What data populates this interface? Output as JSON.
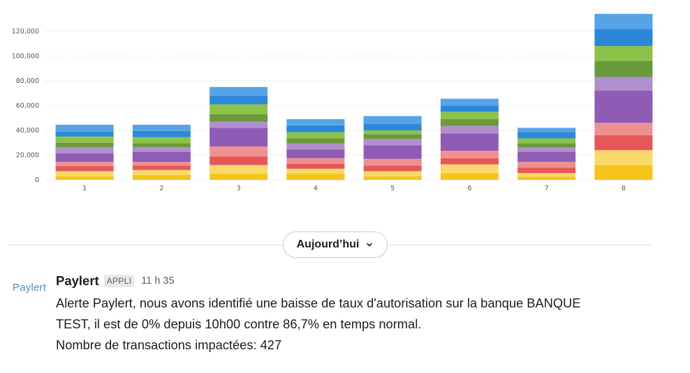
{
  "chart_data": {
    "type": "bar",
    "stacked": true,
    "categories": [
      "1",
      "2",
      "3",
      "4",
      "5",
      "6",
      "7",
      "8"
    ],
    "ylim": [
      0,
      130000
    ],
    "yticks": [
      0,
      20000,
      40000,
      60000,
      80000,
      100000,
      120000
    ],
    "ytick_labels": [
      "0",
      "20,000",
      "40,000",
      "60,000",
      "80,000",
      "100,000",
      "120,000"
    ],
    "grid": true,
    "legend": "none",
    "series": [
      {
        "color": "#f5c518",
        "values": [
          3000,
          4000,
          5000,
          5000,
          3000,
          5500,
          2500,
          12000
        ]
      },
      {
        "color": "#f9d96a",
        "values": [
          4000,
          4000,
          7000,
          4000,
          4000,
          7000,
          3000,
          12000
        ]
      },
      {
        "color": "#e85757",
        "values": [
          4000,
          3500,
          7000,
          4000,
          4500,
          5000,
          4500,
          12000
        ]
      },
      {
        "color": "#ef9090",
        "values": [
          3500,
          3000,
          8000,
          4500,
          5500,
          6000,
          4500,
          10000
        ]
      },
      {
        "color": "#8f5bb5",
        "values": [
          7000,
          8000,
          15000,
          7000,
          11000,
          14000,
          8000,
          26000
        ]
      },
      {
        "color": "#b08fcc",
        "values": [
          5000,
          4000,
          5000,
          5000,
          5000,
          6000,
          3500,
          11000
        ]
      },
      {
        "color": "#6a9a3c",
        "values": [
          3500,
          3000,
          6000,
          4000,
          4000,
          5500,
          3500,
          13000
        ]
      },
      {
        "color": "#8bc34a",
        "values": [
          5000,
          5000,
          8000,
          5000,
          3000,
          6000,
          4000,
          12000
        ]
      },
      {
        "color": "#2b88d9",
        "values": [
          4000,
          5000,
          7000,
          5500,
          5000,
          5000,
          5000,
          14000
        ]
      },
      {
        "color": "#57a3e8",
        "values": [
          5500,
          5000,
          7000,
          5000,
          6500,
          5500,
          3500,
          12000
        ]
      }
    ]
  },
  "divider": {
    "date_label": "Aujourd’hui",
    "chevron_icon": "chevron-down-icon"
  },
  "message": {
    "avatar_text": "Paylert",
    "sender": "Paylert",
    "badge": "APPLI",
    "time": "11 h 35",
    "lines": [
      "Alerte Paylert, nous avons identifié une baisse de taux d'autorisation sur la banque BANQUE",
      "TEST, il est de 0% depuis 10h00 contre 86,7% en temps normal.",
      "Nombre de transactions impactées: 427"
    ]
  },
  "colors": {
    "avatar_blue": "#4a90d9",
    "grid": "#e3e3e3"
  }
}
